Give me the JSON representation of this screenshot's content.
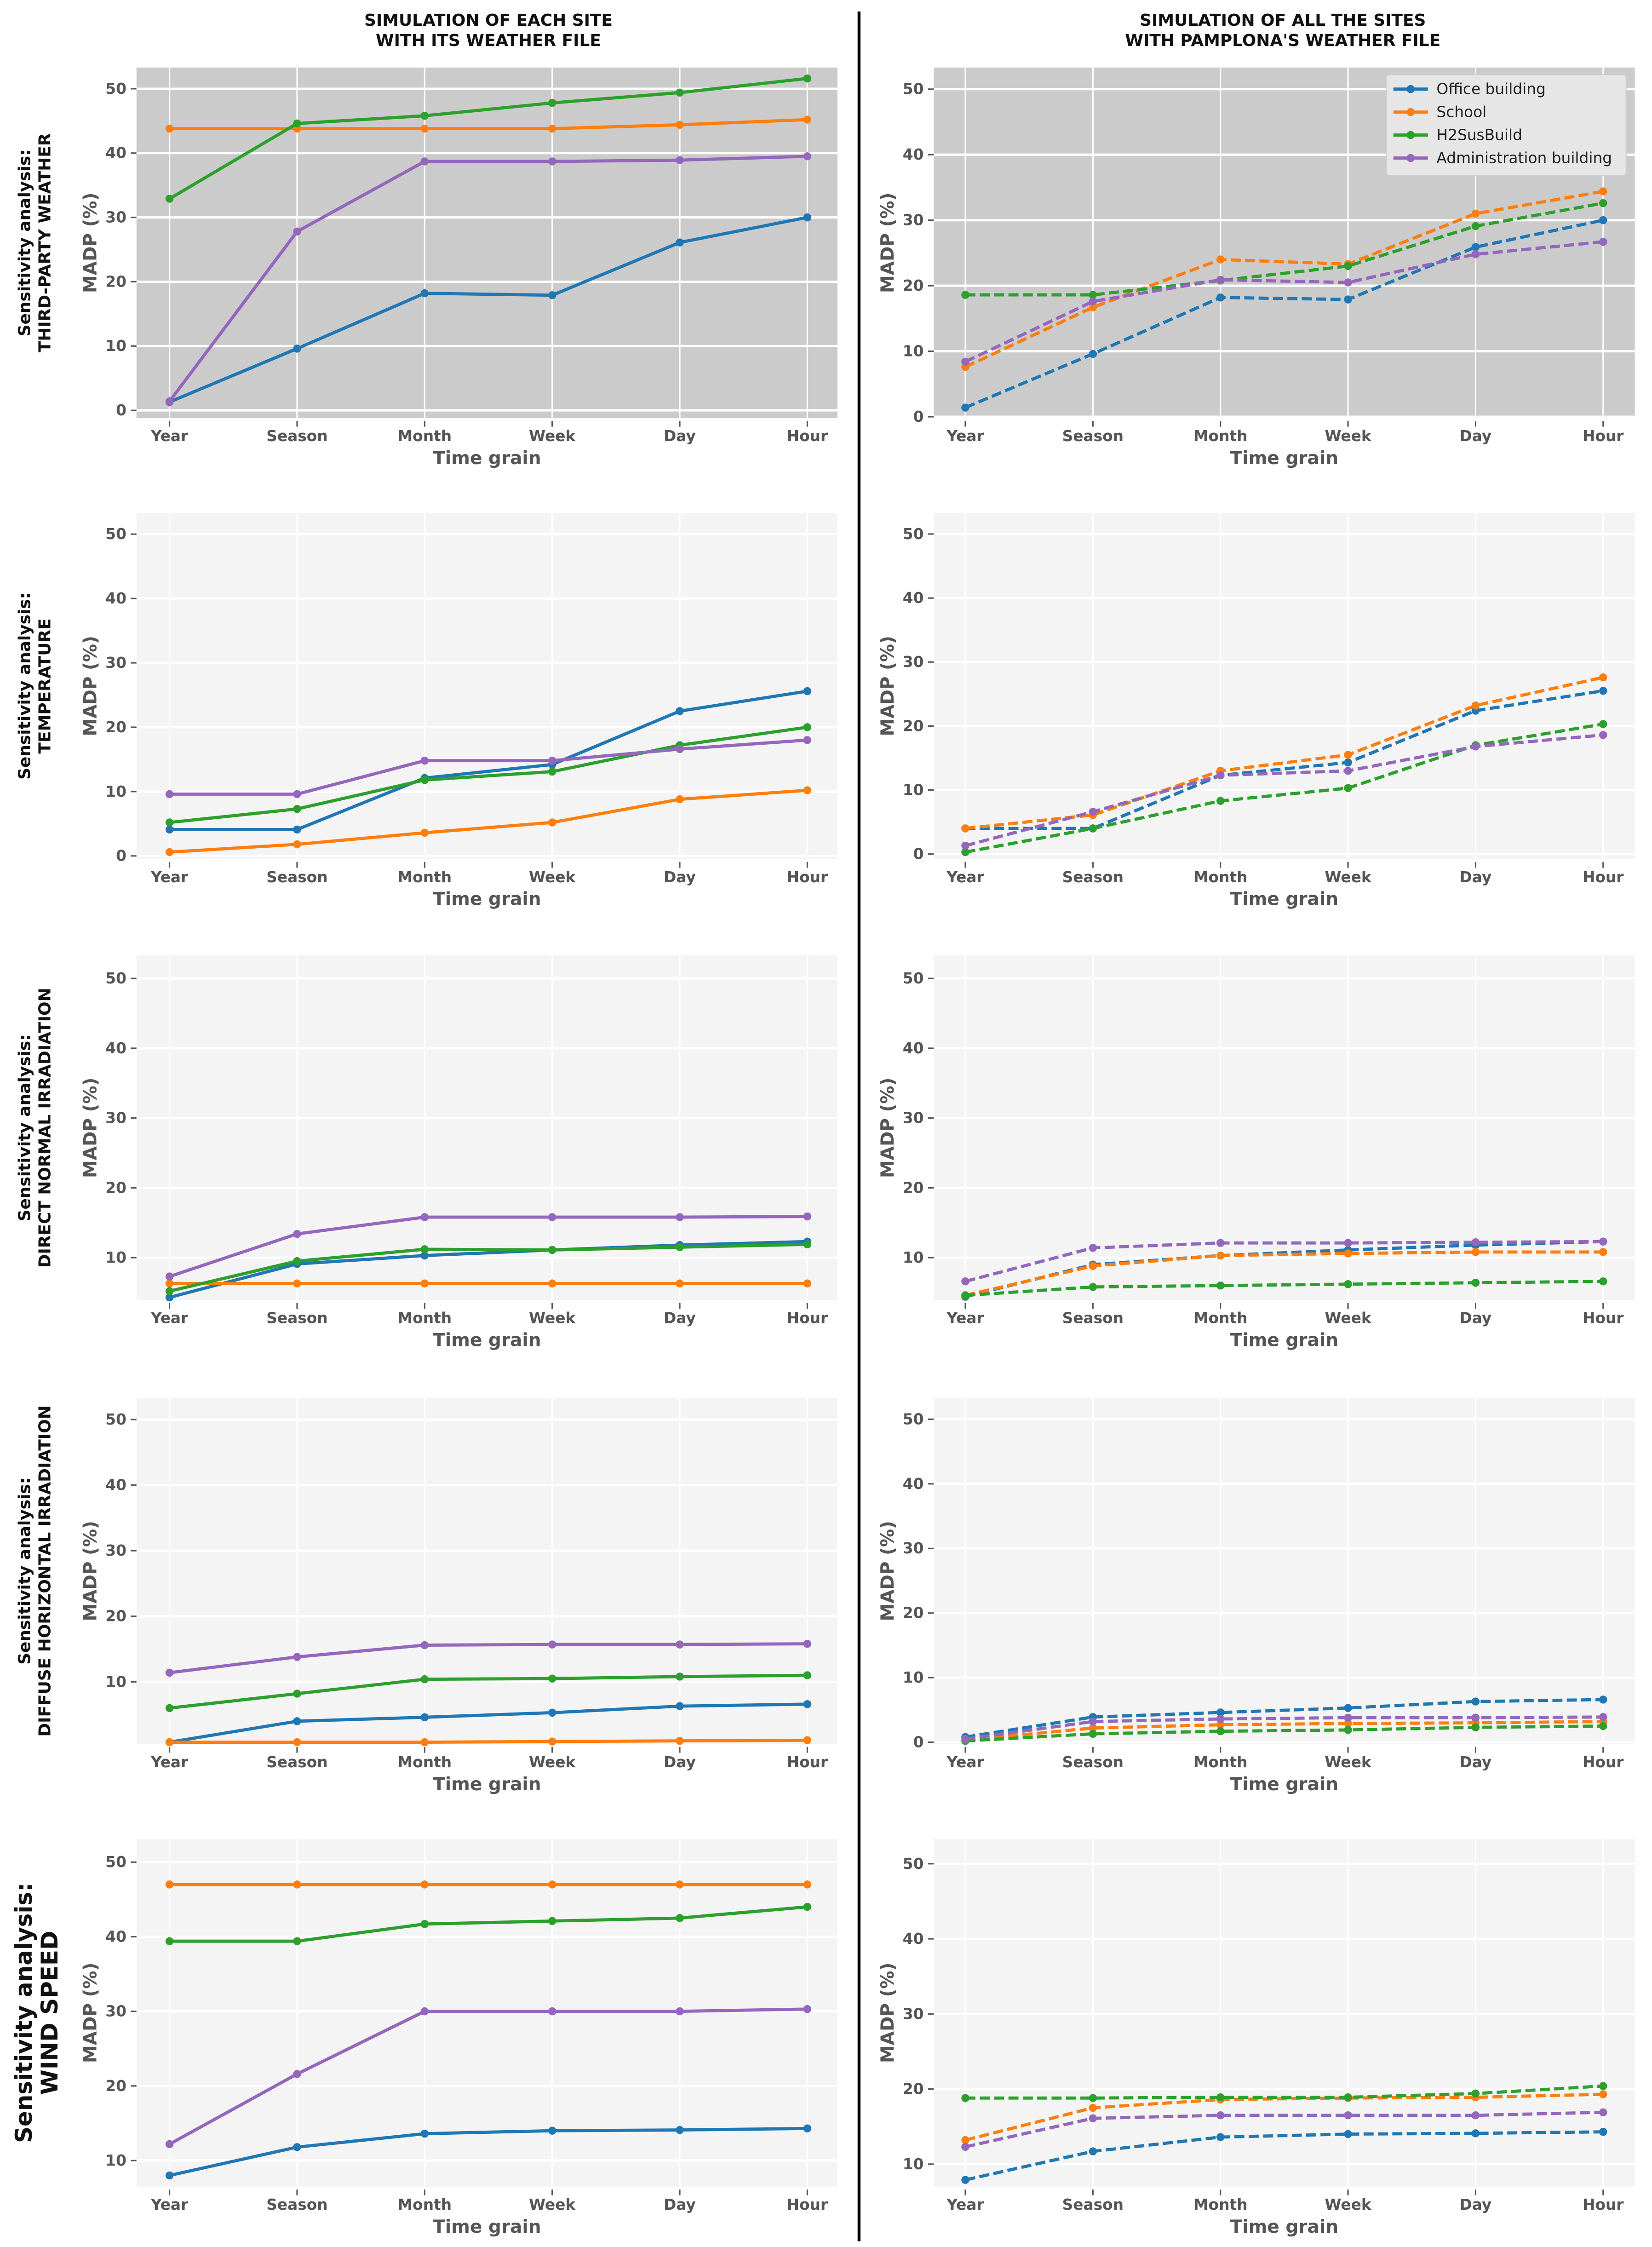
{
  "column_titles": [
    [
      "SIMULATION OF EACH SITE",
      "WITH ITS WEATHER FILE"
    ],
    [
      "SIMULATION OF ALL THE SITES",
      "WITH PAMPLONA'S WEATHER FILE"
    ]
  ],
  "row_labels": [
    [
      "Sensitivity analysis:",
      "THIRD-PARTY WEATHER"
    ],
    [
      "Sensitivity analysis:",
      "TEMPERATURE"
    ],
    [
      "Sensitivity analysis:",
      "DIRECT NORMAL IRRADIATION"
    ],
    [
      "Sensitivity analysis:",
      "DIFFUSE HORIZONTAL IRRADIATION"
    ],
    [
      "Sensitivity analysis:",
      "WIND SPEED"
    ]
  ],
  "legend": {
    "placement": "top-right of top-right panel",
    "entries": [
      "Office building",
      "School",
      "H2SusBuild",
      "Administration building"
    ]
  },
  "colors": {
    "Office building": "#1f77b4",
    "School": "#ff7f0e",
    "H2SusBuild": "#2ca02c",
    "Administration building": "#9467bd",
    "background_third_party": "#cbcbcb",
    "background_other": "#f4f4f4"
  },
  "chart_data": [
    {
      "type": "line",
      "row": 0,
      "col": 0,
      "line_style": "solid",
      "xlabel": "Time grain",
      "ylabel": "MADP (%)",
      "ylim": [
        -1.2,
        53.3
      ],
      "grid": true,
      "categories": [
        "Year",
        "Season",
        "Month",
        "Week",
        "Day",
        "Hour"
      ],
      "series": [
        {
          "name": "Office building",
          "values": [
            1.3,
            9.6,
            18.2,
            17.9,
            26.1,
            30.0
          ]
        },
        {
          "name": "School",
          "values": [
            43.8,
            43.8,
            43.8,
            43.8,
            44.4,
            45.2
          ]
        },
        {
          "name": "H2SusBuild",
          "values": [
            32.9,
            44.6,
            45.8,
            47.8,
            49.4,
            51.6
          ]
        },
        {
          "name": "Administration building",
          "values": [
            1.4,
            27.8,
            38.7,
            38.7,
            38.9,
            39.5
          ]
        }
      ]
    },
    {
      "type": "line",
      "row": 0,
      "col": 1,
      "line_style": "dashed",
      "xlabel": "Time grain",
      "ylabel": "MADP (%)",
      "ylim": [
        -0.2,
        53.3
      ],
      "grid": true,
      "categories": [
        "Year",
        "Season",
        "Month",
        "Week",
        "Day",
        "Hour"
      ],
      "series": [
        {
          "name": "Office building",
          "values": [
            1.4,
            9.6,
            18.2,
            17.9,
            25.9,
            30.0
          ]
        },
        {
          "name": "School",
          "values": [
            7.6,
            16.7,
            24.0,
            23.3,
            31.0,
            34.4
          ]
        },
        {
          "name": "H2SusBuild",
          "values": [
            18.6,
            18.6,
            20.8,
            23.0,
            29.1,
            32.6
          ]
        },
        {
          "name": "Administration building",
          "values": [
            8.4,
            17.6,
            20.9,
            20.5,
            24.8,
            26.7
          ]
        }
      ]
    },
    {
      "type": "line",
      "row": 1,
      "col": 0,
      "line_style": "solid",
      "xlabel": "Time grain",
      "ylabel": "MADP (%)",
      "ylim": [
        -0.5,
        53.3
      ],
      "grid": true,
      "categories": [
        "Year",
        "Season",
        "Month",
        "Week",
        "Day",
        "Hour"
      ],
      "series": [
        {
          "name": "Office building",
          "values": [
            4.1,
            4.1,
            12.1,
            14.2,
            22.5,
            25.6
          ]
        },
        {
          "name": "School",
          "values": [
            0.6,
            1.8,
            3.6,
            5.2,
            8.8,
            10.2
          ]
        },
        {
          "name": "H2SusBuild",
          "values": [
            5.2,
            7.3,
            11.8,
            13.1,
            17.2,
            20.0
          ]
        },
        {
          "name": "Administration building",
          "values": [
            9.6,
            9.6,
            14.8,
            14.8,
            16.6,
            18.0
          ]
        }
      ]
    },
    {
      "type": "line",
      "row": 1,
      "col": 1,
      "line_style": "dashed",
      "xlabel": "Time grain",
      "ylabel": "MADP (%)",
      "ylim": [
        -0.8,
        53.3
      ],
      "grid": true,
      "categories": [
        "Year",
        "Season",
        "Month",
        "Week",
        "Day",
        "Hour"
      ],
      "series": [
        {
          "name": "Office building",
          "values": [
            4.0,
            4.0,
            12.3,
            14.3,
            22.4,
            25.5
          ]
        },
        {
          "name": "School",
          "values": [
            4.0,
            6.1,
            13.0,
            15.5,
            23.2,
            27.6
          ]
        },
        {
          "name": "H2SusBuild",
          "values": [
            0.3,
            4.0,
            8.3,
            10.3,
            17.0,
            20.3
          ]
        },
        {
          "name": "Administration building",
          "values": [
            1.3,
            6.6,
            12.3,
            13.0,
            16.8,
            18.6
          ]
        }
      ]
    },
    {
      "type": "line",
      "row": 2,
      "col": 0,
      "line_style": "solid",
      "xlabel": "Time grain",
      "ylabel": "MADP (%)",
      "ylim": [
        3.9,
        53.3
      ],
      "grid": true,
      "categories": [
        "Year",
        "Season",
        "Month",
        "Week",
        "Day",
        "Hour"
      ],
      "series": [
        {
          "name": "Office building",
          "values": [
            4.3,
            9.1,
            10.3,
            11.1,
            11.8,
            12.3
          ]
        },
        {
          "name": "School",
          "values": [
            6.3,
            6.3,
            6.3,
            6.3,
            6.3,
            6.3
          ]
        },
        {
          "name": "H2SusBuild",
          "values": [
            5.2,
            9.5,
            11.2,
            11.1,
            11.5,
            11.9
          ]
        },
        {
          "name": "Administration building",
          "values": [
            7.3,
            13.4,
            15.8,
            15.8,
            15.8,
            15.9
          ]
        }
      ]
    },
    {
      "type": "line",
      "row": 2,
      "col": 1,
      "line_style": "dashed",
      "xlabel": "Time grain",
      "ylabel": "MADP (%)",
      "ylim": [
        3.9,
        53.3
      ],
      "grid": true,
      "categories": [
        "Year",
        "Season",
        "Month",
        "Week",
        "Day",
        "Hour"
      ],
      "series": [
        {
          "name": "Office building",
          "values": [
            4.4,
            9.0,
            10.3,
            11.1,
            11.8,
            12.3
          ]
        },
        {
          "name": "School",
          "values": [
            4.6,
            8.8,
            10.3,
            10.6,
            10.8,
            10.8
          ]
        },
        {
          "name": "H2SusBuild",
          "values": [
            4.6,
            5.8,
            6.0,
            6.2,
            6.4,
            6.6
          ]
        },
        {
          "name": "Administration building",
          "values": [
            6.6,
            11.4,
            12.1,
            12.1,
            12.2,
            12.3
          ]
        }
      ]
    },
    {
      "type": "line",
      "row": 3,
      "col": 0,
      "line_style": "solid",
      "xlabel": "Time grain",
      "ylabel": "MADP (%)",
      "ylim": [
        0.5,
        53.3
      ],
      "grid": true,
      "categories": [
        "Year",
        "Season",
        "Month",
        "Week",
        "Day",
        "Hour"
      ],
      "series": [
        {
          "name": "Office building",
          "values": [
            0.8,
            4.0,
            4.6,
            5.3,
            6.3,
            6.6
          ]
        },
        {
          "name": "School",
          "values": [
            0.8,
            0.8,
            0.8,
            0.9,
            1.0,
            1.1
          ]
        },
        {
          "name": "H2SusBuild",
          "values": [
            6.0,
            8.2,
            10.4,
            10.5,
            10.8,
            11.0
          ]
        },
        {
          "name": "Administration building",
          "values": [
            11.4,
            13.8,
            15.6,
            15.7,
            15.7,
            15.8
          ]
        }
      ]
    },
    {
      "type": "line",
      "row": 3,
      "col": 1,
      "line_style": "dashed",
      "xlabel": "Time grain",
      "ylabel": "MADP (%)",
      "ylim": [
        -0.3,
        53.3
      ],
      "grid": true,
      "categories": [
        "Year",
        "Season",
        "Month",
        "Week",
        "Day",
        "Hour"
      ],
      "series": [
        {
          "name": "Office building",
          "values": [
            0.8,
            3.9,
            4.6,
            5.3,
            6.3,
            6.6
          ]
        },
        {
          "name": "School",
          "values": [
            0.3,
            2.2,
            2.7,
            2.9,
            3.0,
            3.2
          ]
        },
        {
          "name": "H2SusBuild",
          "values": [
            0.2,
            1.3,
            1.7,
            1.9,
            2.3,
            2.5
          ]
        },
        {
          "name": "Administration building",
          "values": [
            0.5,
            3.2,
            3.6,
            3.8,
            3.8,
            3.9
          ]
        }
      ]
    },
    {
      "type": "line",
      "row": 4,
      "col": 0,
      "line_style": "solid",
      "xlabel": "Time grain",
      "ylabel": "MADP (%)",
      "ylim": [
        6.5,
        53.1
      ],
      "grid": true,
      "categories": [
        "Year",
        "Season",
        "Month",
        "Week",
        "Day",
        "Hour"
      ],
      "series": [
        {
          "name": "Office building",
          "values": [
            8.0,
            11.8,
            13.6,
            14.0,
            14.1,
            14.3
          ]
        },
        {
          "name": "School",
          "values": [
            47.0,
            47.0,
            47.0,
            47.0,
            47.0,
            47.0
          ]
        },
        {
          "name": "H2SusBuild",
          "values": [
            39.4,
            39.4,
            41.7,
            42.1,
            42.5,
            44.0
          ]
        },
        {
          "name": "Administration building",
          "values": [
            12.2,
            21.6,
            30.0,
            30.0,
            30.0,
            30.3
          ]
        }
      ]
    },
    {
      "type": "line",
      "row": 4,
      "col": 1,
      "line_style": "dashed",
      "xlabel": "Time grain",
      "ylabel": "MADP (%)",
      "ylim": [
        7.0,
        53.3
      ],
      "grid": true,
      "categories": [
        "Year",
        "Season",
        "Month",
        "Week",
        "Day",
        "Hour"
      ],
      "series": [
        {
          "name": "Office building",
          "values": [
            7.9,
            11.7,
            13.6,
            14.0,
            14.1,
            14.3
          ]
        },
        {
          "name": "School",
          "values": [
            13.2,
            17.5,
            18.6,
            18.8,
            18.9,
            19.3
          ]
        },
        {
          "name": "H2SusBuild",
          "values": [
            18.8,
            18.8,
            18.9,
            18.9,
            19.4,
            20.4
          ]
        },
        {
          "name": "Administration building",
          "values": [
            12.3,
            16.1,
            16.5,
            16.5,
            16.5,
            16.9
          ]
        }
      ]
    }
  ]
}
